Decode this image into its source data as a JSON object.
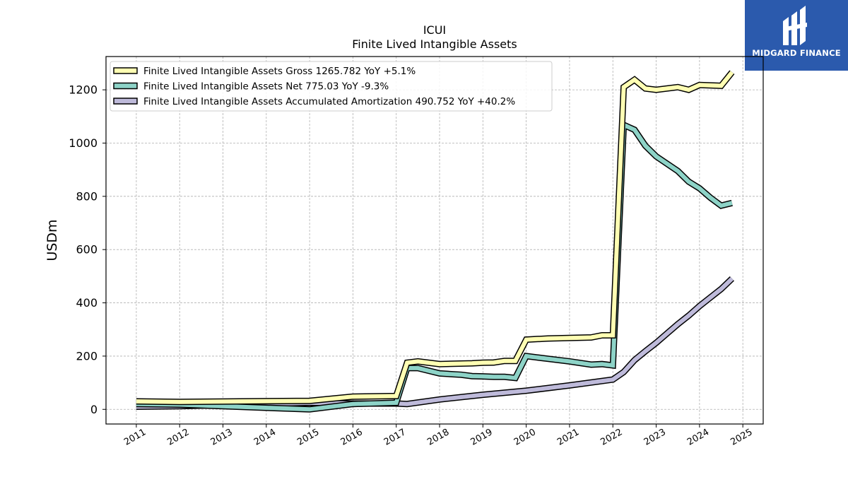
{
  "brand": {
    "name": "MIDGARD FINANCE",
    "color": "#2b5aad"
  },
  "chart_data": {
    "type": "line",
    "title": "ICUI",
    "subtitle": "Finite Lived Intangible Assets",
    "xlabel": "",
    "ylabel": "USDm",
    "xlim": [
      2010.3,
      2025.47
    ],
    "ylim": [
      -55,
      1325
    ],
    "yticks": [
      0,
      200,
      400,
      600,
      800,
      1000,
      1200
    ],
    "xticks": [
      "2011",
      "2012",
      "2013",
      "2014",
      "2015",
      "2016",
      "2017",
      "2018",
      "2019",
      "2020",
      "2021",
      "2022",
      "2023",
      "2024",
      "2025"
    ],
    "grid": true,
    "legend_position": "top-left",
    "series": [
      {
        "name": "Finite Lived Intangible Assets Gross  1265.782 YoY +5.1%",
        "color": "#ffffb3",
        "x": [
          2011.0,
          2012.0,
          2015.0,
          2016.0,
          2017.0,
          2017.25,
          2017.5,
          2018.0,
          2018.75,
          2019.0,
          2019.25,
          2019.5,
          2019.75,
          2020.0,
          2020.25,
          2020.5,
          2021.0,
          2021.5,
          2021.75,
          2022.0,
          2022.25,
          2022.5,
          2022.75,
          2023.0,
          2023.5,
          2023.75,
          2024.0,
          2024.5,
          2024.75
        ],
        "y": [
          30,
          28,
          32,
          48,
          50,
          175,
          180,
          170,
          173,
          175,
          176,
          182,
          182,
          262,
          264,
          266,
          268,
          270,
          278,
          278,
          1210,
          1238,
          1205,
          1200,
          1210,
          1200,
          1218,
          1215,
          1266
        ]
      },
      {
        "name": "Finite Lived Intangible Assets Net  775.03 YoY -9.3%",
        "color": "#8dd3c7",
        "x": [
          2011.0,
          2012.0,
          2015.0,
          2016.0,
          2017.0,
          2017.25,
          2017.5,
          2018.0,
          2018.5,
          2018.75,
          2019.0,
          2019.25,
          2019.5,
          2019.75,
          2020.0,
          2020.25,
          2020.5,
          2021.0,
          2021.5,
          2021.75,
          2022.0,
          2022.25,
          2022.5,
          2022.75,
          2023.0,
          2023.5,
          2023.75,
          2024.0,
          2024.25,
          2024.5,
          2024.75
        ],
        "y": [
          20,
          18,
          0,
          20,
          25,
          155,
          155,
          135,
          130,
          125,
          124,
          122,
          122,
          118,
          200,
          195,
          190,
          180,
          168,
          170,
          165,
          1068,
          1050,
          990,
          950,
          895,
          855,
          830,
          795,
          765,
          775
        ]
      },
      {
        "name": "Finite Lived Intangible Assets Accumulated Amortization  490.752 YoY +40.2%",
        "color": "#bebada",
        "x": [
          2011.0,
          2012.0,
          2015.0,
          2016.0,
          2017.0,
          2017.25,
          2018.0,
          2019.0,
          2020.0,
          2021.0,
          2022.0,
          2022.25,
          2022.5,
          2022.75,
          2023.0,
          2023.25,
          2023.5,
          2023.75,
          2024.0,
          2024.25,
          2024.5,
          2024.75
        ],
        "y": [
          10,
          12,
          25,
          22,
          22,
          20,
          37,
          55,
          70,
          90,
          112,
          140,
          185,
          218,
          250,
          285,
          320,
          352,
          388,
          420,
          452,
          491
        ]
      }
    ]
  }
}
